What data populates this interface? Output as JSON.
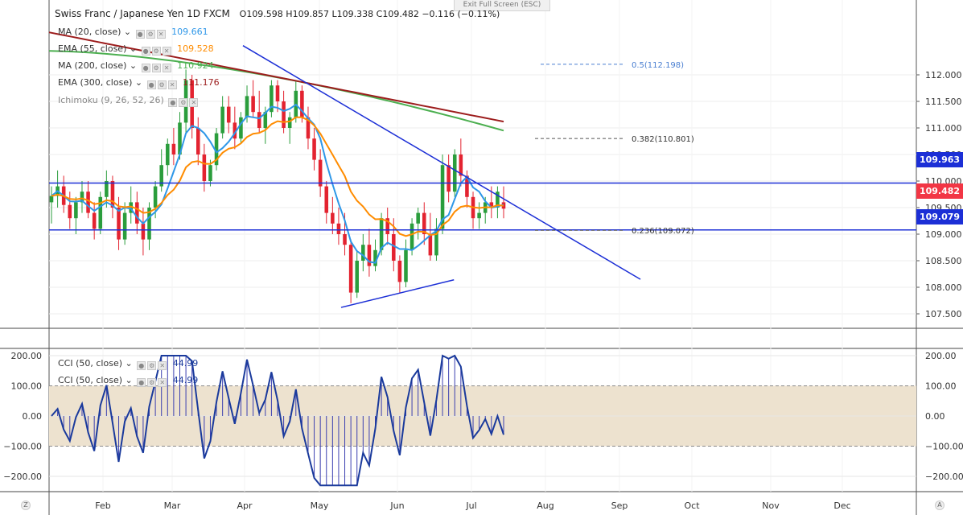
{
  "header": {
    "symbol_label": "Swiss Franc / Japanese Yen",
    "interval": "1D",
    "exchange": "FXCM",
    "ohlc": "O109.598  H109.857  L109.338  C109.482  −0.116 (−0.11%)",
    "exit_fullscreen": "Exit Full Screen (ESC)"
  },
  "legends": {
    "ma20": {
      "label": "MA (20, close)",
      "value": "109.661",
      "color": "#2e97e8"
    },
    "ema55": {
      "label": "EMA (55, close)",
      "value": "109.528",
      "color": "#ff8c00"
    },
    "ma200": {
      "label": "MA (200, close)",
      "value": "110.924",
      "color": "#4caf50"
    },
    "ema300": {
      "label": "EMA (300, close)",
      "value": "111.176",
      "color": "#9c1c1c"
    },
    "ichimoku": {
      "label": "Ichimoku (9, 26, 52, 26)"
    },
    "cci1": {
      "label": "CCI (50, close)",
      "value": "44.99",
      "color": "#1a3a9c"
    },
    "cci2": {
      "label": "CCI (50, close)",
      "value": "44.99",
      "color": "#1a3a9c"
    }
  },
  "price_tags": {
    "resistance": {
      "text": "109.963",
      "color": "#1c2fd6"
    },
    "last": {
      "text": "109.482",
      "color": "#f23645"
    },
    "support": {
      "text": "109.079",
      "color": "#1c2fd6"
    }
  },
  "fib_labels": {
    "fib_050": "0.5(112.198)",
    "fib_0382": "0.382(110.801)",
    "fib_0236": "0.236(109.072)"
  },
  "bottom_buttons": {
    "left": "Z",
    "right": "A"
  },
  "chart_data": {
    "type": "candlestick",
    "title": "Swiss Franc / Japanese Yen, 1D, FXCM",
    "price_axis": {
      "ticks": [
        "112.000",
        "111.500",
        "111.000",
        "110.500",
        "110.000",
        "109.500",
        "109.000",
        "108.500",
        "108.000",
        "107.500"
      ],
      "range": [
        107.35,
        112.45
      ]
    },
    "time_axis": {
      "labels": [
        "Feb",
        "Mar",
        "Apr",
        "May",
        "Jun",
        "Jul",
        "Aug",
        "Sep",
        "Oct",
        "Nov",
        "Dec"
      ]
    },
    "horizontal_levels": [
      {
        "name": "resistance",
        "value": 109.963,
        "color": "#1c2fd6"
      },
      {
        "name": "support",
        "value": 109.079,
        "color": "#1c2fd6"
      }
    ],
    "fibonacci_levels": [
      {
        "ratio": 0.5,
        "value": 112.198
      },
      {
        "ratio": 0.382,
        "value": 110.801
      },
      {
        "ratio": 0.236,
        "value": 109.072
      }
    ],
    "trendlines": [
      {
        "name": "descending",
        "from": {
          "day": 79,
          "price": 112.55
        },
        "to": {
          "day": 241,
          "price": 108.15
        }
      },
      {
        "name": "ascending-support",
        "from": {
          "day": 119,
          "price": 107.62
        },
        "to": {
          "day": 165,
          "price": 108.14
        }
      }
    ],
    "candles_ohlc": [
      [
        109.6,
        109.9,
        109.2,
        109.72
      ],
      [
        109.72,
        110.2,
        109.5,
        109.9
      ],
      [
        109.9,
        110.1,
        109.4,
        109.55
      ],
      [
        109.55,
        109.8,
        109.1,
        109.3
      ],
      [
        109.3,
        109.7,
        109.0,
        109.6
      ],
      [
        109.6,
        110.0,
        109.4,
        109.8
      ],
      [
        109.8,
        110.0,
        109.3,
        109.4
      ],
      [
        109.4,
        109.6,
        108.9,
        109.1
      ],
      [
        109.1,
        109.8,
        109.0,
        109.7
      ],
      [
        109.7,
        110.2,
        109.5,
        110.0
      ],
      [
        110.0,
        110.1,
        109.3,
        109.5
      ],
      [
        109.5,
        109.7,
        108.7,
        108.9
      ],
      [
        108.9,
        109.6,
        108.8,
        109.4
      ],
      [
        109.4,
        109.9,
        109.2,
        109.6
      ],
      [
        109.6,
        109.8,
        109.0,
        109.2
      ],
      [
        109.2,
        109.5,
        108.6,
        108.9
      ],
      [
        108.9,
        109.6,
        108.7,
        109.5
      ],
      [
        109.5,
        110.0,
        109.3,
        109.9
      ],
      [
        109.9,
        110.6,
        109.8,
        110.3
      ],
      [
        110.3,
        110.8,
        110.1,
        110.7
      ],
      [
        110.7,
        111.0,
        110.3,
        110.5
      ],
      [
        110.5,
        111.3,
        110.4,
        111.1
      ],
      [
        111.1,
        112.1,
        110.9,
        111.9
      ],
      [
        111.9,
        112.0,
        110.8,
        111.0
      ],
      [
        111.0,
        111.2,
        110.3,
        110.5
      ],
      [
        110.5,
        110.7,
        109.8,
        110.0
      ],
      [
        110.0,
        110.4,
        109.9,
        110.3
      ],
      [
        110.3,
        111.0,
        110.2,
        110.9
      ],
      [
        110.9,
        111.6,
        110.8,
        111.4
      ],
      [
        111.4,
        111.6,
        110.9,
        111.1
      ],
      [
        111.1,
        111.4,
        110.6,
        110.8
      ],
      [
        110.8,
        111.3,
        110.7,
        111.2
      ],
      [
        111.2,
        111.8,
        111.1,
        111.6
      ],
      [
        111.6,
        111.9,
        111.2,
        111.3
      ],
      [
        111.3,
        111.7,
        110.9,
        111.0
      ],
      [
        111.0,
        111.4,
        110.7,
        111.3
      ],
      [
        111.3,
        111.9,
        111.2,
        111.8
      ],
      [
        111.8,
        111.9,
        111.3,
        111.5
      ],
      [
        111.5,
        111.7,
        110.9,
        111.0
      ],
      [
        111.0,
        111.3,
        110.7,
        111.2
      ],
      [
        111.2,
        111.9,
        111.1,
        111.7
      ],
      [
        111.7,
        111.8,
        111.1,
        111.2
      ],
      [
        111.2,
        111.4,
        110.6,
        110.8
      ],
      [
        110.8,
        111.0,
        110.2,
        110.4
      ],
      [
        110.4,
        110.6,
        109.7,
        109.9
      ],
      [
        109.9,
        110.0,
        109.2,
        109.4
      ],
      [
        109.4,
        109.7,
        109.0,
        109.2
      ],
      [
        109.2,
        109.5,
        108.8,
        109.0
      ],
      [
        109.0,
        109.4,
        108.6,
        108.8
      ],
      [
        108.8,
        108.9,
        107.7,
        107.9
      ],
      [
        107.9,
        108.7,
        107.8,
        108.5
      ],
      [
        108.5,
        109.0,
        108.3,
        108.8
      ],
      [
        108.8,
        109.1,
        108.2,
        108.4
      ],
      [
        108.4,
        108.9,
        108.3,
        108.7
      ],
      [
        108.7,
        109.4,
        108.6,
        109.3
      ],
      [
        109.3,
        109.5,
        108.8,
        109.0
      ],
      [
        109.0,
        109.3,
        108.3,
        108.5
      ],
      [
        108.5,
        108.6,
        107.9,
        108.1
      ],
      [
        108.1,
        108.9,
        108.0,
        108.7
      ],
      [
        108.7,
        109.3,
        108.6,
        109.2
      ],
      [
        109.2,
        109.5,
        108.9,
        109.4
      ],
      [
        109.4,
        109.6,
        108.8,
        109.0
      ],
      [
        109.0,
        109.4,
        108.5,
        108.6
      ],
      [
        108.6,
        109.3,
        108.5,
        109.1
      ],
      [
        109.1,
        110.5,
        109.0,
        110.3
      ],
      [
        110.3,
        110.5,
        109.6,
        109.8
      ],
      [
        109.8,
        110.6,
        109.7,
        110.5
      ],
      [
        110.5,
        110.8,
        109.9,
        110.1
      ],
      [
        110.1,
        110.2,
        109.5,
        109.7
      ],
      [
        109.7,
        109.8,
        109.1,
        109.3
      ],
      [
        109.3,
        109.6,
        109.1,
        109.4
      ],
      [
        109.4,
        109.7,
        109.2,
        109.6
      ],
      [
        109.6,
        109.9,
        109.3,
        109.5
      ],
      [
        109.5,
        109.9,
        109.3,
        109.8
      ],
      [
        109.6,
        109.9,
        109.3,
        109.48
      ]
    ]
  }
}
